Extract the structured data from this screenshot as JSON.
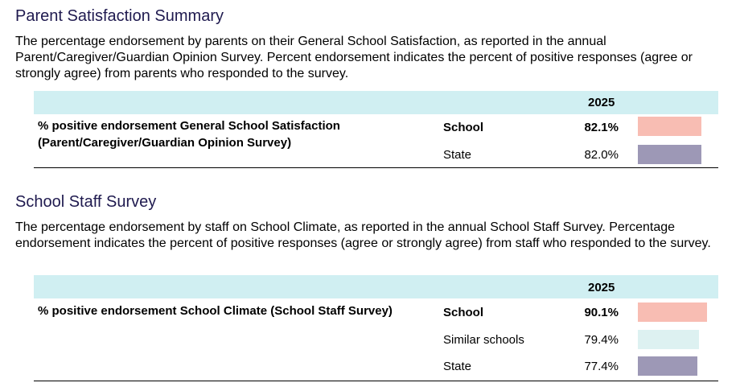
{
  "colors": {
    "header_bg": "#d0eff2",
    "school": "#f8bdb3",
    "similar_schools": "#ddf1f1",
    "state": "#9d98b6",
    "title": "#1f1a4f"
  },
  "sections": [
    {
      "title": "Parent Satisfaction Summary",
      "description": "The percentage endorsement by parents on their General School Satisfaction, as reported in the annual Parent/Caregiver/Guardian Opinion Survey. Percent endorsement indicates the percent of positive responses (agree or strongly agree) from parents who responded to the survey.",
      "year": "2025",
      "metric": "% positive endorsement General School Satisfaction (Parent/Caregiver/Guardian Opinion Survey)",
      "rows": [
        {
          "label": "School",
          "value": "82.1%",
          "percent": 82.1,
          "color": "#f8bdb3",
          "bold": true
        },
        {
          "label": "State",
          "value": "82.0%",
          "percent": 82.0,
          "color": "#9d98b6",
          "bold": false
        }
      ]
    },
    {
      "title": "School Staff Survey",
      "description": "The percentage endorsement by staff on School Climate, as reported in the annual School Staff Survey. Percentage endorsement indicates the percent of positive responses (agree or strongly agree) from staff who responded to the survey.",
      "year": "2025",
      "metric": "% positive endorsement School Climate (School Staff Survey)",
      "rows": [
        {
          "label": "School",
          "value": "90.1%",
          "percent": 90.1,
          "color": "#f8bdb3",
          "bold": true
        },
        {
          "label": "Similar schools",
          "value": "79.4%",
          "percent": 79.4,
          "color": "#ddf1f1",
          "bold": false
        },
        {
          "label": "State",
          "value": "77.4%",
          "percent": 77.4,
          "color": "#9d98b6",
          "bold": false
        }
      ]
    }
  ]
}
